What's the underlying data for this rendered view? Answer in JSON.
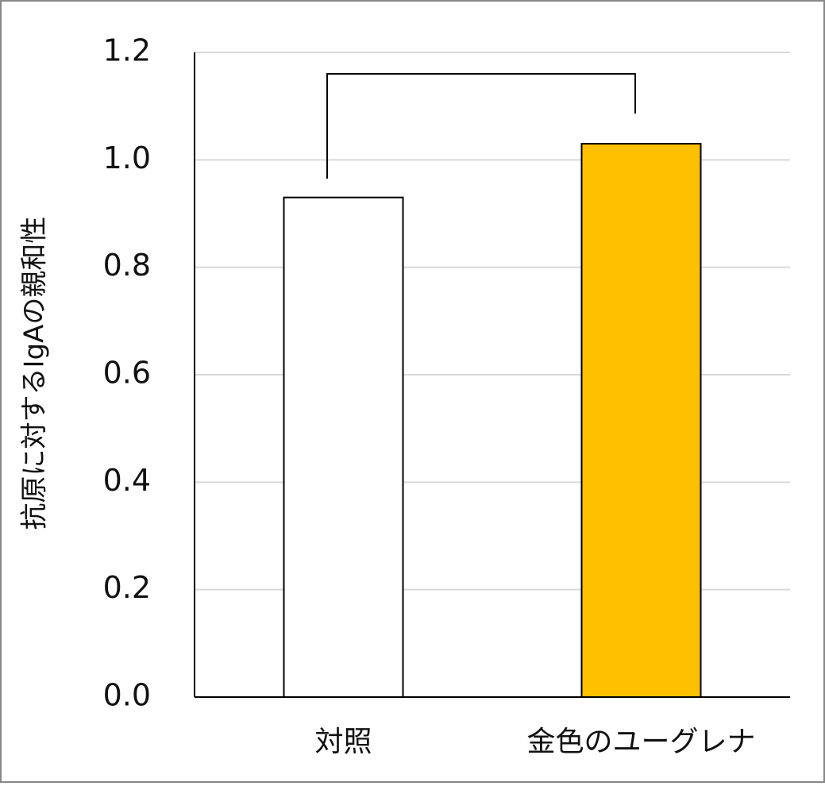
{
  "chart_data": {
    "type": "bar",
    "y_label": "抗原に対するIgAの親和性",
    "categories": [
      "対照",
      "金色のユーグレナ"
    ],
    "values": [
      0.93,
      1.03
    ],
    "colors": [
      "#ffffff",
      "#ffc000"
    ],
    "ylim": [
      0,
      1.2
    ],
    "yticks": [
      {
        "value": 0,
        "label": "0.0"
      },
      {
        "value": 0.2,
        "label": "0.2"
      },
      {
        "value": 0.4,
        "label": "0.4"
      },
      {
        "value": 0.6,
        "label": "0.6"
      },
      {
        "value": 0.8,
        "label": "0.8"
      },
      {
        "value": 1,
        "label": "1.0"
      },
      {
        "value": 1.2,
        "label": "1.2"
      }
    ],
    "grid": true
  }
}
